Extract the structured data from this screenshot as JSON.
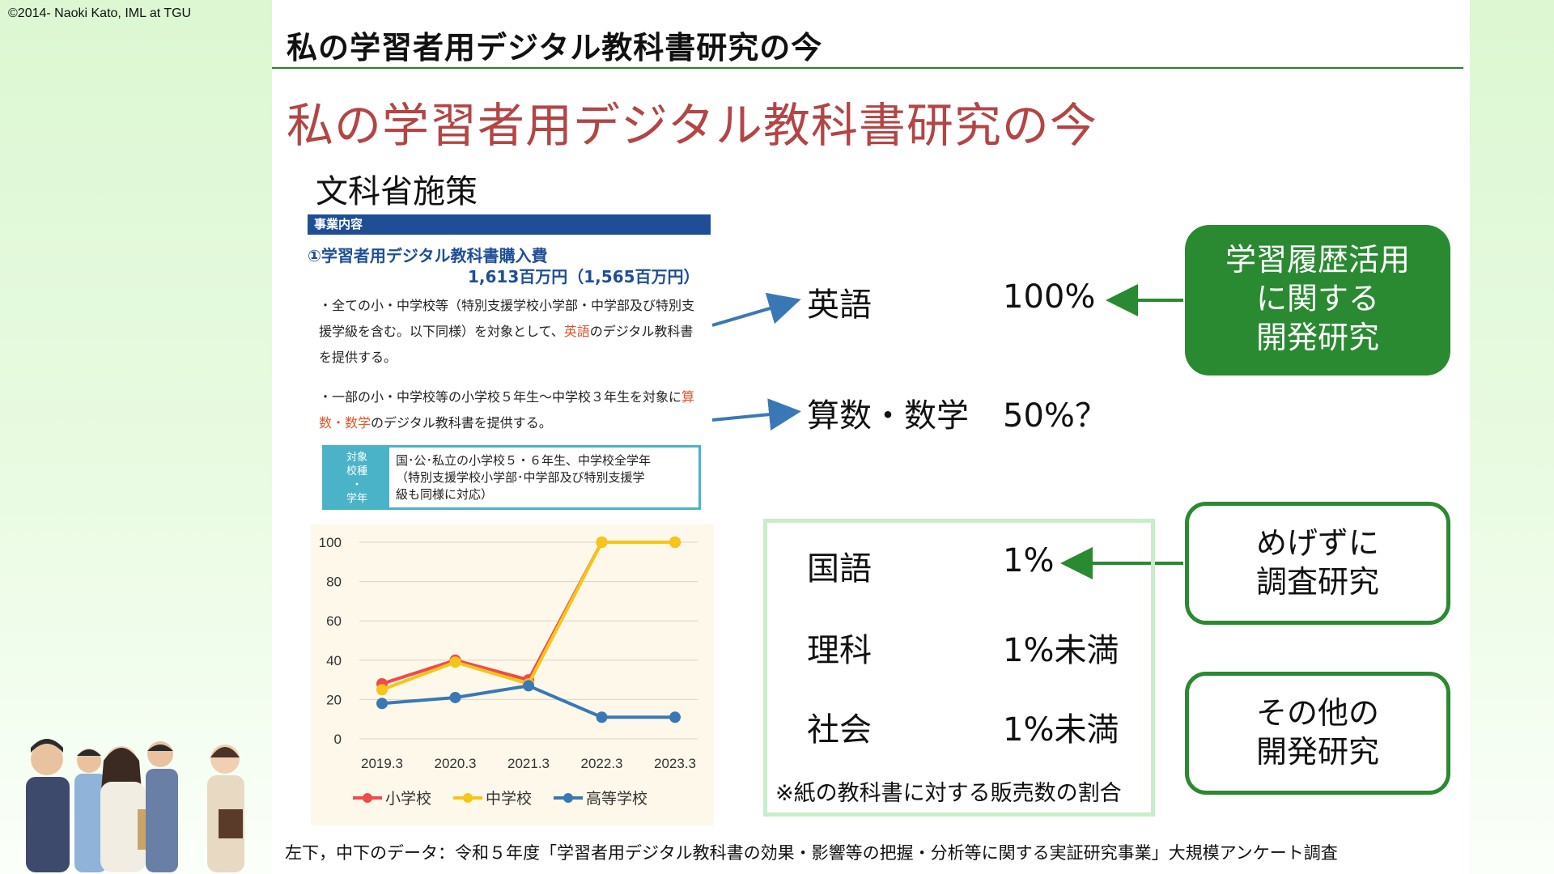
{
  "copyright": "©2014- Naoki Kato, IML at TGU",
  "header": {
    "title": "私の学習者用デジタル教科書研究の今"
  },
  "main": {
    "heading": "私の学習者用デジタル教科書研究の今",
    "section_label": "文科省施策"
  },
  "doc": {
    "header": "事業内容",
    "item_title": "①学習者用デジタル教科書購入費",
    "budget": "1,613百万円（1,565百万円）",
    "bullet1_pre": "・全ての小・中学校等（特別支援学校小学部・中学部及び特別支援学級を含む。以下同様）を対象として、",
    "bullet1_hl": "英語",
    "bullet1_post": "のデジタル教科書を提供する。",
    "bullet2_pre": "・一部の小・中学校等の小学校５年生～中学校３年生を対象に",
    "bullet2_hl": "算数・数学",
    "bullet2_post": "のデジタル教科書を提供する。",
    "target_label": "対象\n校種\n・\n学年",
    "target_text": "国･公･私立の小学校５・６年生、中学校全学年\n（特別支援学校小学部･中学部及び特別支援学\n級も同様に対応）"
  },
  "chart_data": {
    "type": "line",
    "categories": [
      "2019.3",
      "2020.3",
      "2021.3",
      "2022.3",
      "2023.3"
    ],
    "ylim": [
      0,
      100
    ],
    "yticks": [
      "0",
      "20",
      "40",
      "60",
      "80",
      "100"
    ],
    "grid": true,
    "legend_position": "bottom",
    "series": [
      {
        "name": "小学校",
        "color": "#f04a4a",
        "values": [
          28,
          40,
          30,
          100,
          100
        ]
      },
      {
        "name": "中学校",
        "color": "#f5c518",
        "values": [
          25,
          39,
          28,
          100,
          100
        ]
      },
      {
        "name": "高等学校",
        "color": "#3a78b5",
        "values": [
          18,
          21,
          27,
          11,
          11
        ]
      }
    ]
  },
  "subjects": {
    "english": {
      "name": "英語",
      "value": "100%"
    },
    "math": {
      "name": "算数・数学",
      "value": "50%？"
    },
    "japanese": {
      "name": "国語",
      "value": "1%"
    },
    "science": {
      "name": "理科",
      "value": "1%未満"
    },
    "social": {
      "name": "社会",
      "value": "1%未満"
    },
    "note": "※紙の教科書に対する販売数の割合"
  },
  "boxes": {
    "learning_history": "学習履歴活用\nに関する\n開発研究",
    "unvarnished": "めげずに\n調査研究",
    "other": "その他の\n開発研究"
  },
  "source": "左下，中下のデータ：令和５年度「学習者用デジタル教科書の効果・影響等の把握・分析等に関する実証研究事業」大規模アンケート調査",
  "colors": {
    "accent_red": "#b34545",
    "green": "#2a8a32",
    "navy": "#1f4e96",
    "arrow_blue": "#3a78b5"
  }
}
